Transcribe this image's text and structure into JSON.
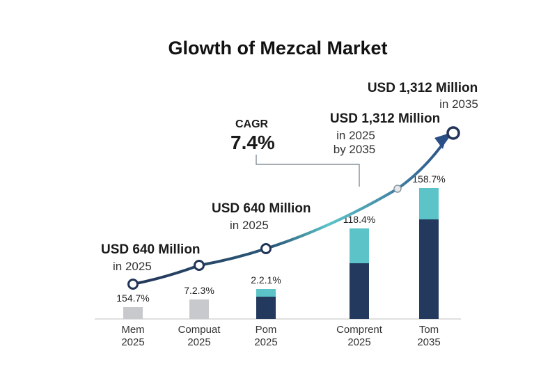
{
  "chart_data": {
    "type": "bar",
    "title": "Glowth of Mezcal Market",
    "categories": [
      {
        "name": "Mem",
        "year": "2025"
      },
      {
        "name": "Compuat",
        "year": "2025"
      },
      {
        "name": "Pom",
        "year": "2025"
      },
      {
        "name": "Comprent",
        "year": "2025"
      },
      {
        "name": "Tom",
        "year": "2035"
      }
    ],
    "bar_labels": [
      "154.7%",
      "7.2.3%",
      "2.2.1%",
      "118.4%",
      "158.7%"
    ],
    "stacks": [
      {
        "bottom": 17,
        "top": 0
      },
      {
        "bottom": 28,
        "top": 0
      },
      {
        "bottom": 32,
        "top": 11
      },
      {
        "bottom": 80,
        "top": 50
      },
      {
        "bottom": 143,
        "top": 45
      }
    ],
    "stack_colors": {
      "base": "#c7c9cc",
      "bottom": "#24395e",
      "top": "#5cc4c8"
    },
    "trend_line": {
      "points": [
        [
          0,
          50
        ],
        [
          1,
          77
        ],
        [
          2,
          101
        ],
        [
          3.55,
          187
        ],
        [
          4.35,
          267
        ]
      ],
      "colors": [
        "#223558",
        "#5cc4c8"
      ]
    },
    "annotations": [
      {
        "value": "USD 640 Million",
        "sub": "in 2025"
      },
      {
        "value": "USD 640 Million",
        "sub": "in 2025"
      },
      {
        "value": "USD 1,312 Million",
        "sub": "in 2025",
        "sub2": "by 2035"
      },
      {
        "value": "USD 1,312 Million",
        "sub": "in 2035"
      }
    ],
    "cagr": {
      "label": "CAGR",
      "value": "7.4%"
    }
  }
}
